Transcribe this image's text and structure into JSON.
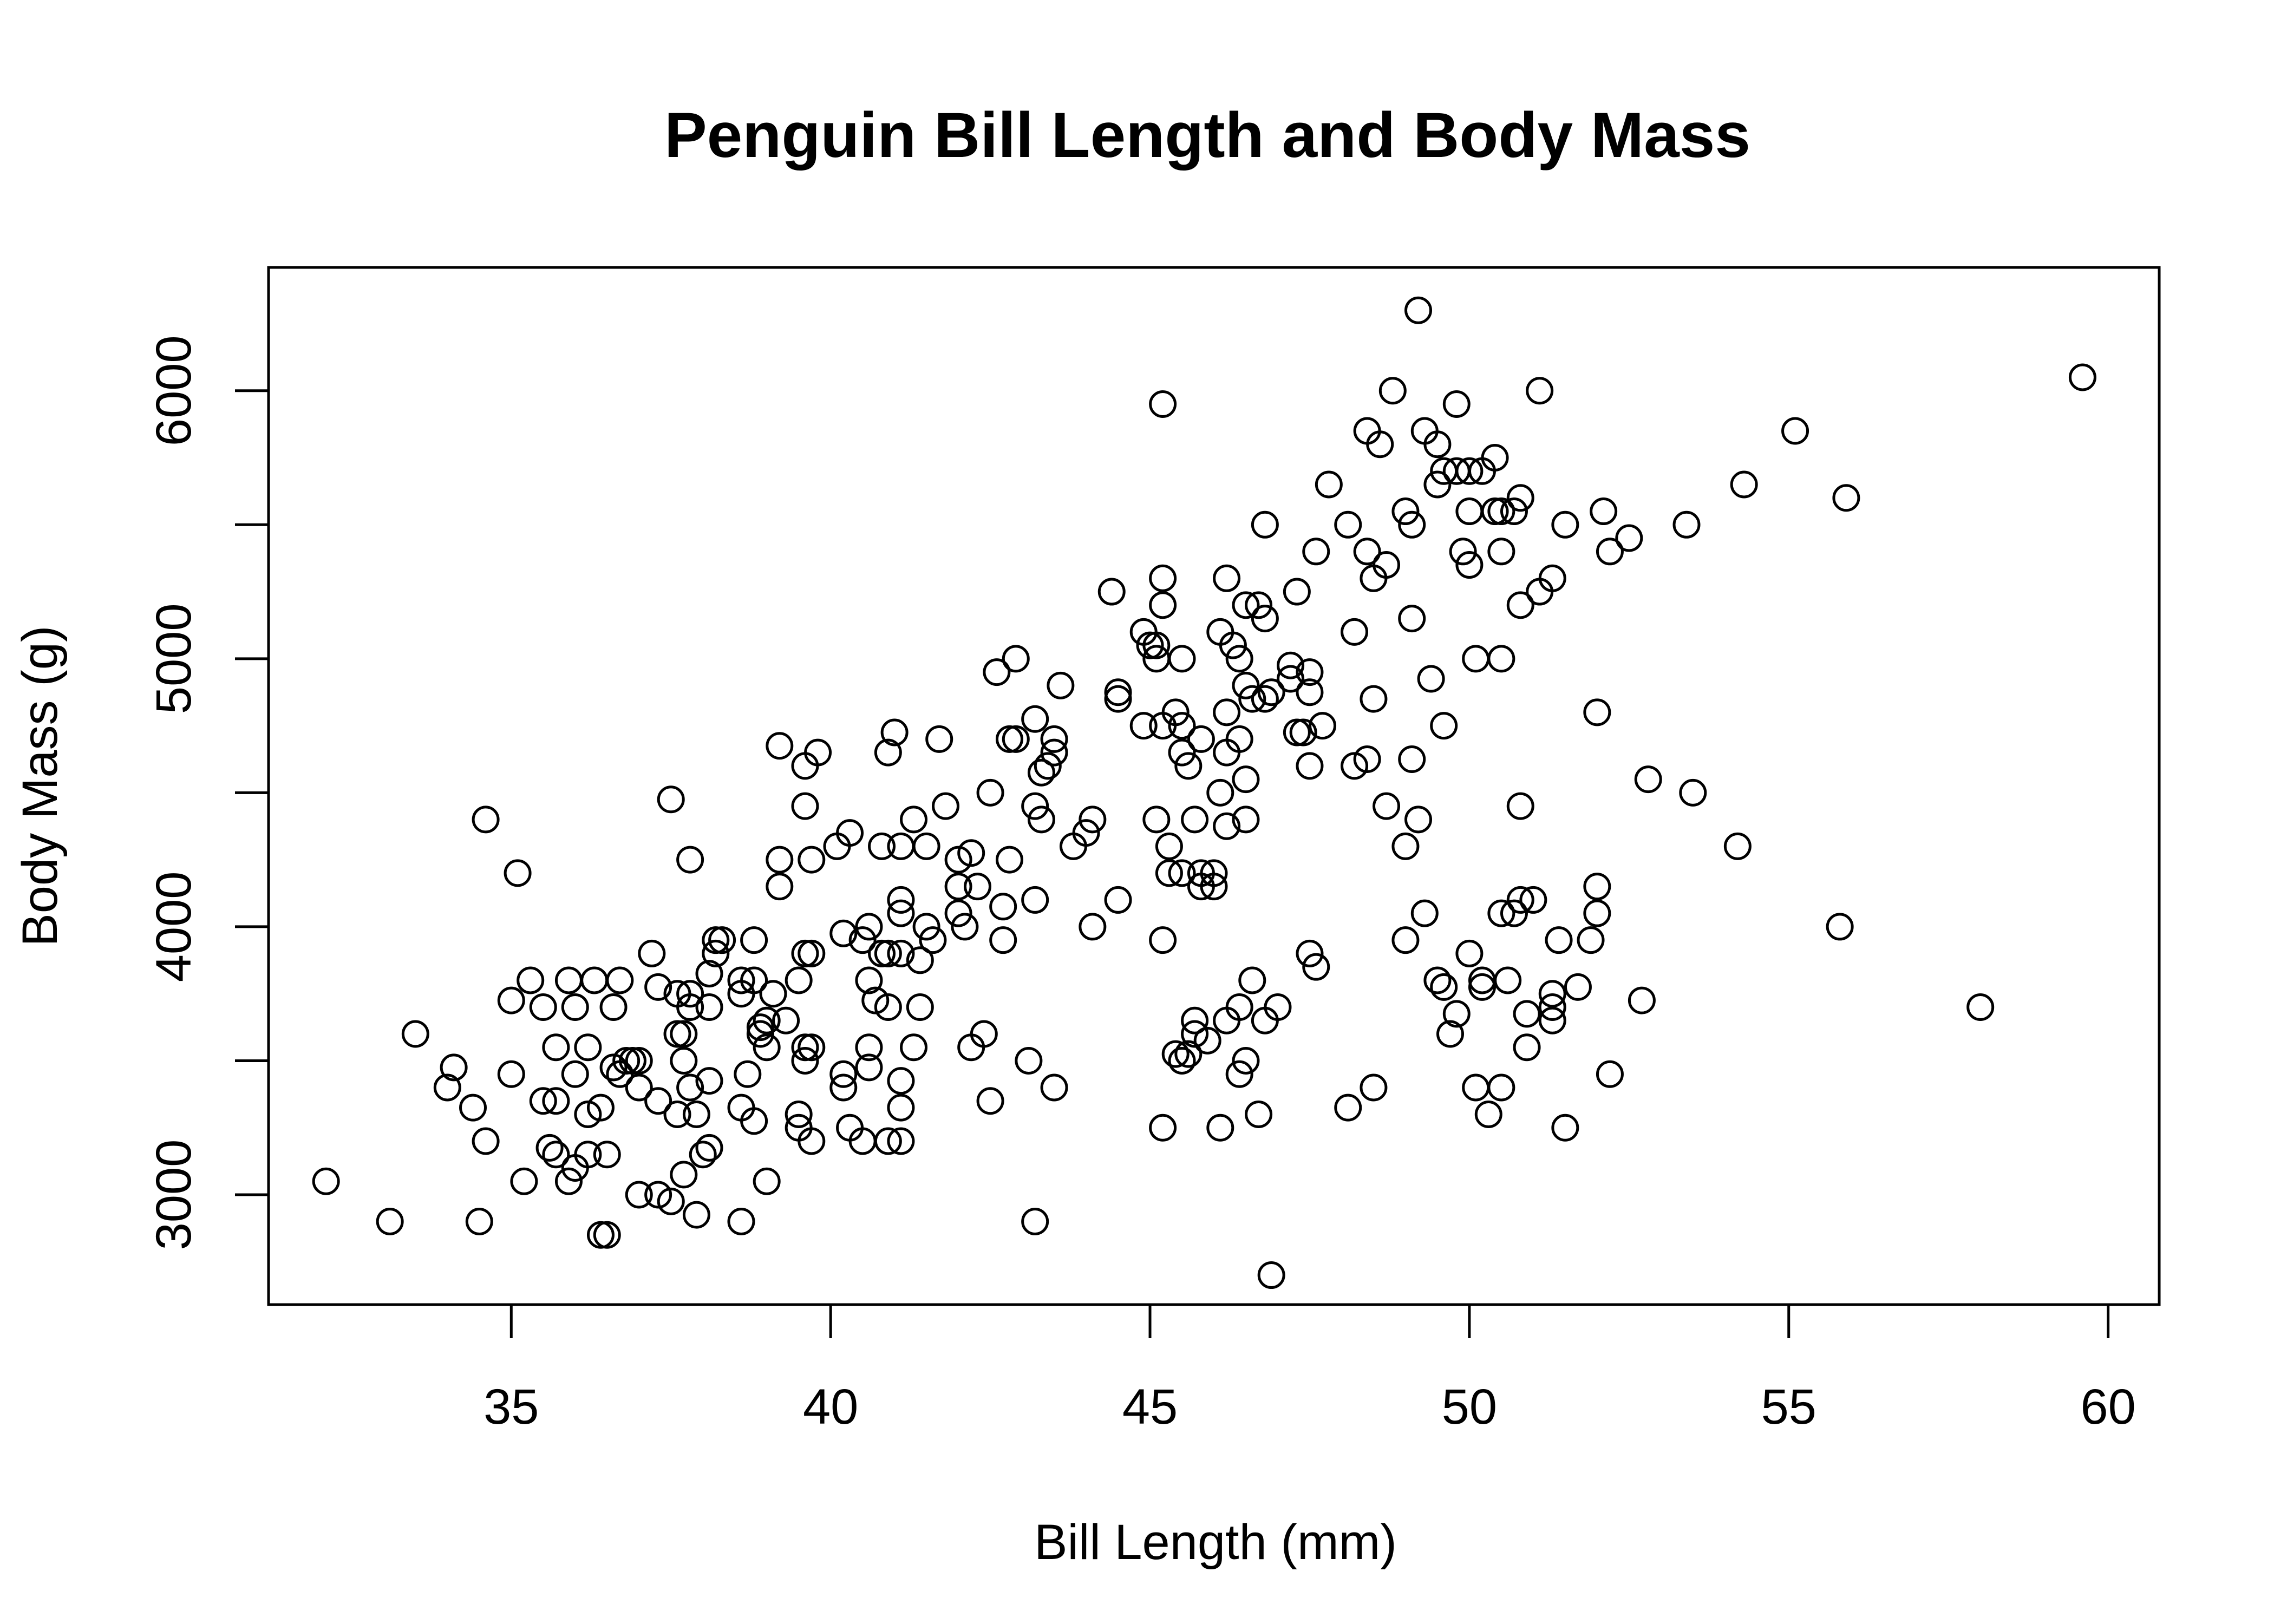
{
  "chart_data": {
    "type": "scatter",
    "title": "Penguin Bill Length and Body Mass",
    "xlabel": "Bill Length (mm)",
    "ylabel": "Body Mass (g)",
    "xlim": [
      31.2,
      60.8
    ],
    "ylim": [
      2590,
      6460
    ],
    "xticks": [
      35,
      40,
      45,
      50,
      55,
      60
    ],
    "yticks": [
      3000,
      3500,
      4000,
      4500,
      5000,
      5500,
      6000
    ],
    "ytick_labels": [
      "3000",
      "",
      "4000",
      "",
      "5000",
      "",
      "6000"
    ],
    "grid": false,
    "legend": "none",
    "marker": "open-circle",
    "colors": {
      "ink": "#000000",
      "background": "#ffffff"
    },
    "points": [
      [
        32.1,
        3050
      ],
      [
        33.1,
        2900
      ],
      [
        33.5,
        3600
      ],
      [
        34.0,
        3400
      ],
      [
        34.1,
        3475
      ],
      [
        34.4,
        3325
      ],
      [
        34.5,
        2900
      ],
      [
        34.6,
        4400
      ],
      [
        34.6,
        3200
      ],
      [
        35.0,
        3450
      ],
      [
        35.0,
        3725
      ],
      [
        35.1,
        4200
      ],
      [
        35.2,
        3050
      ],
      [
        35.3,
        3800
      ],
      [
        35.5,
        3350
      ],
      [
        35.5,
        3700
      ],
      [
        35.6,
        3175
      ],
      [
        35.7,
        3350
      ],
      [
        35.7,
        3550
      ],
      [
        35.7,
        3150
      ],
      [
        35.9,
        3800
      ],
      [
        35.9,
        3050
      ],
      [
        36.0,
        3450
      ],
      [
        36.0,
        3700
      ],
      [
        36.0,
        3100
      ],
      [
        36.2,
        3550
      ],
      [
        36.2,
        3300
      ],
      [
        36.2,
        3150
      ],
      [
        36.3,
        3800
      ],
      [
        36.4,
        3325
      ],
      [
        36.4,
        2850
      ],
      [
        36.5,
        2850
      ],
      [
        36.5,
        3150
      ],
      [
        36.6,
        3700
      ],
      [
        36.6,
        3475
      ],
      [
        36.7,
        3450
      ],
      [
        36.7,
        3800
      ],
      [
        36.8,
        3500
      ],
      [
        36.9,
        3500
      ],
      [
        37.0,
        3500
      ],
      [
        37.0,
        3000
      ],
      [
        37.0,
        3400
      ],
      [
        37.2,
        3900
      ],
      [
        37.3,
        3775
      ],
      [
        37.3,
        3350
      ],
      [
        37.3,
        3000
      ],
      [
        37.5,
        4475
      ],
      [
        37.5,
        2975
      ],
      [
        37.6,
        3600
      ],
      [
        37.6,
        3750
      ],
      [
        37.6,
        3300
      ],
      [
        37.7,
        3600
      ],
      [
        37.7,
        3500
      ],
      [
        37.7,
        3075
      ],
      [
        37.8,
        4250
      ],
      [
        37.8,
        3700
      ],
      [
        37.8,
        3750
      ],
      [
        37.8,
        3400
      ],
      [
        37.9,
        3300
      ],
      [
        37.9,
        2925
      ],
      [
        38.0,
        3150
      ],
      [
        38.1,
        3425
      ],
      [
        38.1,
        3700
      ],
      [
        38.1,
        3825
      ],
      [
        38.1,
        3175
      ],
      [
        38.2,
        3900
      ],
      [
        38.2,
        3950
      ],
      [
        38.3,
        3950
      ],
      [
        38.6,
        3325
      ],
      [
        38.6,
        3750
      ],
      [
        38.6,
        2900
      ],
      [
        38.6,
        3800
      ],
      [
        38.7,
        3450
      ],
      [
        38.8,
        3950
      ],
      [
        38.8,
        3275
      ],
      [
        38.8,
        3800
      ],
      [
        38.9,
        3600
      ],
      [
        38.9,
        3625
      ],
      [
        39.0,
        3650
      ],
      [
        39.0,
        3550
      ],
      [
        39.0,
        3050
      ],
      [
        39.1,
        3750
      ],
      [
        39.2,
        4675
      ],
      [
        39.2,
        4250
      ],
      [
        39.2,
        4150
      ],
      [
        39.3,
        3650
      ],
      [
        39.5,
        3800
      ],
      [
        39.5,
        3300
      ],
      [
        39.5,
        3250
      ],
      [
        39.6,
        4600
      ],
      [
        39.6,
        4450
      ],
      [
        39.6,
        3500
      ],
      [
        39.6,
        3900
      ],
      [
        39.6,
        3550
      ],
      [
        39.7,
        3550
      ],
      [
        39.7,
        4250
      ],
      [
        39.7,
        3200
      ],
      [
        39.7,
        3900
      ],
      [
        39.8,
        4650
      ],
      [
        40.1,
        4300
      ],
      [
        40.2,
        3975
      ],
      [
        40.2,
        3400
      ],
      [
        40.2,
        3450
      ],
      [
        40.3,
        3250
      ],
      [
        40.3,
        4350
      ],
      [
        40.5,
        3950
      ],
      [
        40.5,
        3200
      ],
      [
        40.6,
        4000
      ],
      [
        40.6,
        3800
      ],
      [
        40.6,
        3550
      ],
      [
        40.6,
        3475
      ],
      [
        40.7,
        3725
      ],
      [
        40.8,
        4300
      ],
      [
        40.8,
        3900
      ],
      [
        40.9,
        4650
      ],
      [
        40.9,
        3900
      ],
      [
        40.9,
        3700
      ],
      [
        40.9,
        3200
      ],
      [
        41.0,
        4725
      ],
      [
        41.1,
        4300
      ],
      [
        41.1,
        4100
      ],
      [
        41.1,
        4050
      ],
      [
        41.1,
        3900
      ],
      [
        41.1,
        3425
      ],
      [
        41.1,
        3325
      ],
      [
        41.1,
        3200
      ],
      [
        41.3,
        4400
      ],
      [
        41.3,
        3550
      ],
      [
        41.4,
        3875
      ],
      [
        41.4,
        3700
      ],
      [
        41.5,
        4000
      ],
      [
        41.5,
        4300
      ],
      [
        41.6,
        3950
      ],
      [
        41.7,
        4700
      ],
      [
        41.8,
        4450
      ],
      [
        42.0,
        4250
      ],
      [
        42.0,
        4150
      ],
      [
        42.0,
        4050
      ],
      [
        42.1,
        4000
      ],
      [
        42.2,
        4275
      ],
      [
        42.2,
        3550
      ],
      [
        42.3,
        4150
      ],
      [
        42.4,
        3600
      ],
      [
        42.5,
        4500
      ],
      [
        42.5,
        3350
      ],
      [
        42.6,
        4950
      ],
      [
        42.7,
        4075
      ],
      [
        42.7,
        3950
      ],
      [
        42.8,
        4700
      ],
      [
        42.8,
        4250
      ],
      [
        42.9,
        4700
      ],
      [
        42.9,
        5000
      ],
      [
        43.1,
        3500
      ],
      [
        43.2,
        4775
      ],
      [
        43.2,
        4450
      ],
      [
        43.2,
        4100
      ],
      [
        43.2,
        2900
      ],
      [
        43.3,
        4400
      ],
      [
        43.3,
        4575
      ],
      [
        43.4,
        4600
      ],
      [
        43.5,
        4700
      ],
      [
        43.5,
        4650
      ],
      [
        43.5,
        3400
      ],
      [
        43.6,
        4900
      ],
      [
        43.8,
        4300
      ],
      [
        44.0,
        4350
      ],
      [
        44.1,
        4400
      ],
      [
        44.1,
        4000
      ],
      [
        44.4,
        5250
      ],
      [
        44.5,
        4875
      ],
      [
        44.5,
        4850
      ],
      [
        44.5,
        4100
      ],
      [
        44.9,
        5100
      ],
      [
        44.9,
        4750
      ],
      [
        45.0,
        5050
      ],
      [
        45.1,
        5000
      ],
      [
        45.1,
        5050
      ],
      [
        45.1,
        4400
      ],
      [
        45.2,
        5300
      ],
      [
        45.2,
        5200
      ],
      [
        45.2,
        4750
      ],
      [
        45.2,
        5950
      ],
      [
        45.2,
        3950
      ],
      [
        45.2,
        3250
      ],
      [
        45.3,
        4300
      ],
      [
        45.3,
        4200
      ],
      [
        45.4,
        4800
      ],
      [
        45.4,
        3525
      ],
      [
        45.5,
        4750
      ],
      [
        45.5,
        4200
      ],
      [
        45.5,
        5000
      ],
      [
        45.5,
        4650
      ],
      [
        45.5,
        3500
      ],
      [
        45.6,
        4600
      ],
      [
        45.6,
        3525
      ],
      [
        45.7,
        4400
      ],
      [
        45.7,
        3650
      ],
      [
        45.7,
        3600
      ],
      [
        45.8,
        4700
      ],
      [
        45.8,
        4150
      ],
      [
        45.8,
        4200
      ],
      [
        45.9,
        3575
      ],
      [
        46.0,
        4200
      ],
      [
        46.0,
        4150
      ],
      [
        46.1,
        5100
      ],
      [
        46.1,
        4500
      ],
      [
        46.1,
        3250
      ],
      [
        46.2,
        5300
      ],
      [
        46.2,
        4800
      ],
      [
        46.2,
        4650
      ],
      [
        46.2,
        4375
      ],
      [
        46.2,
        3650
      ],
      [
        46.3,
        5050
      ],
      [
        46.4,
        5000
      ],
      [
        46.4,
        4700
      ],
      [
        46.4,
        3700
      ],
      [
        46.4,
        3450
      ],
      [
        46.5,
        5200
      ],
      [
        46.5,
        4900
      ],
      [
        46.5,
        4550
      ],
      [
        46.5,
        4400
      ],
      [
        46.5,
        3500
      ],
      [
        46.6,
        4850
      ],
      [
        46.6,
        3800
      ],
      [
        46.7,
        5200
      ],
      [
        46.7,
        3300
      ],
      [
        46.8,
        5500
      ],
      [
        46.8,
        5150
      ],
      [
        46.8,
        4850
      ],
      [
        46.8,
        3650
      ],
      [
        46.9,
        4875
      ],
      [
        46.9,
        2700
      ],
      [
        47.0,
        3700
      ],
      [
        47.2,
        4975
      ],
      [
        47.2,
        4925
      ],
      [
        47.3,
        5250
      ],
      [
        47.3,
        4725
      ],
      [
        47.4,
        4725
      ],
      [
        47.5,
        4875
      ],
      [
        47.5,
        4950
      ],
      [
        47.5,
        4600
      ],
      [
        47.5,
        3900
      ],
      [
        47.6,
        5400
      ],
      [
        47.6,
        3850
      ],
      [
        47.7,
        4750
      ],
      [
        47.8,
        5650
      ],
      [
        48.1,
        5500
      ],
      [
        48.1,
        3325
      ],
      [
        48.2,
        5100
      ],
      [
        48.2,
        4600
      ],
      [
        48.4,
        5850
      ],
      [
        48.4,
        5400
      ],
      [
        48.4,
        4625
      ],
      [
        48.5,
        5300
      ],
      [
        48.5,
        4850
      ],
      [
        48.5,
        3400
      ],
      [
        48.6,
        5800
      ],
      [
        48.7,
        5350
      ],
      [
        48.7,
        4450
      ],
      [
        48.8,
        6000
      ],
      [
        49.0,
        5550
      ],
      [
        49.0,
        4300
      ],
      [
        49.0,
        3950
      ],
      [
        49.1,
        5500
      ],
      [
        49.1,
        5150
      ],
      [
        49.1,
        4625
      ],
      [
        49.2,
        6300
      ],
      [
        49.2,
        4400
      ],
      [
        49.3,
        5850
      ],
      [
        49.3,
        4050
      ],
      [
        49.4,
        4925
      ],
      [
        49.5,
        5650
      ],
      [
        49.5,
        5800
      ],
      [
        49.5,
        3800
      ],
      [
        49.6,
        5700
      ],
      [
        49.6,
        4750
      ],
      [
        49.6,
        3775
      ],
      [
        49.7,
        3600
      ],
      [
        49.8,
        5700
      ],
      [
        49.8,
        5950
      ],
      [
        49.8,
        3675
      ],
      [
        49.9,
        5400
      ],
      [
        50.0,
        5700
      ],
      [
        50.0,
        5550
      ],
      [
        50.0,
        5350
      ],
      [
        50.0,
        3900
      ],
      [
        50.1,
        5000
      ],
      [
        50.1,
        3400
      ],
      [
        50.2,
        5700
      ],
      [
        50.2,
        3775
      ],
      [
        50.2,
        3800
      ],
      [
        50.3,
        3300
      ],
      [
        50.4,
        5550
      ],
      [
        50.4,
        5750
      ],
      [
        50.5,
        5550
      ],
      [
        50.5,
        5400
      ],
      [
        50.5,
        5000
      ],
      [
        50.5,
        4050
      ],
      [
        50.5,
        3400
      ],
      [
        50.6,
        3800
      ],
      [
        50.7,
        5550
      ],
      [
        50.7,
        4050
      ],
      [
        50.8,
        5600
      ],
      [
        50.8,
        5200
      ],
      [
        50.8,
        4450
      ],
      [
        50.8,
        4100
      ],
      [
        50.9,
        3675
      ],
      [
        50.9,
        3550
      ],
      [
        51.0,
        4100
      ],
      [
        51.1,
        6000
      ],
      [
        51.1,
        5250
      ],
      [
        51.3,
        5300
      ],
      [
        51.3,
        3650
      ],
      [
        51.3,
        3700
      ],
      [
        51.3,
        3750
      ],
      [
        51.4,
        3950
      ],
      [
        51.5,
        5500
      ],
      [
        51.5,
        3250
      ],
      [
        51.7,
        3775
      ],
      [
        51.9,
        3950
      ],
      [
        52.0,
        4800
      ],
      [
        52.0,
        4150
      ],
      [
        52.0,
        4050
      ],
      [
        52.1,
        5550
      ],
      [
        52.2,
        5400
      ],
      [
        52.2,
        3450
      ],
      [
        52.5,
        5450
      ],
      [
        52.7,
        3725
      ],
      [
        52.8,
        4550
      ],
      [
        53.4,
        5500
      ],
      [
        53.5,
        4500
      ],
      [
        54.2,
        4300
      ],
      [
        54.3,
        5650
      ],
      [
        55.1,
        5850
      ],
      [
        55.8,
        4000
      ],
      [
        55.9,
        5600
      ],
      [
        58.0,
        3700
      ],
      [
        59.6,
        6050
      ]
    ]
  }
}
